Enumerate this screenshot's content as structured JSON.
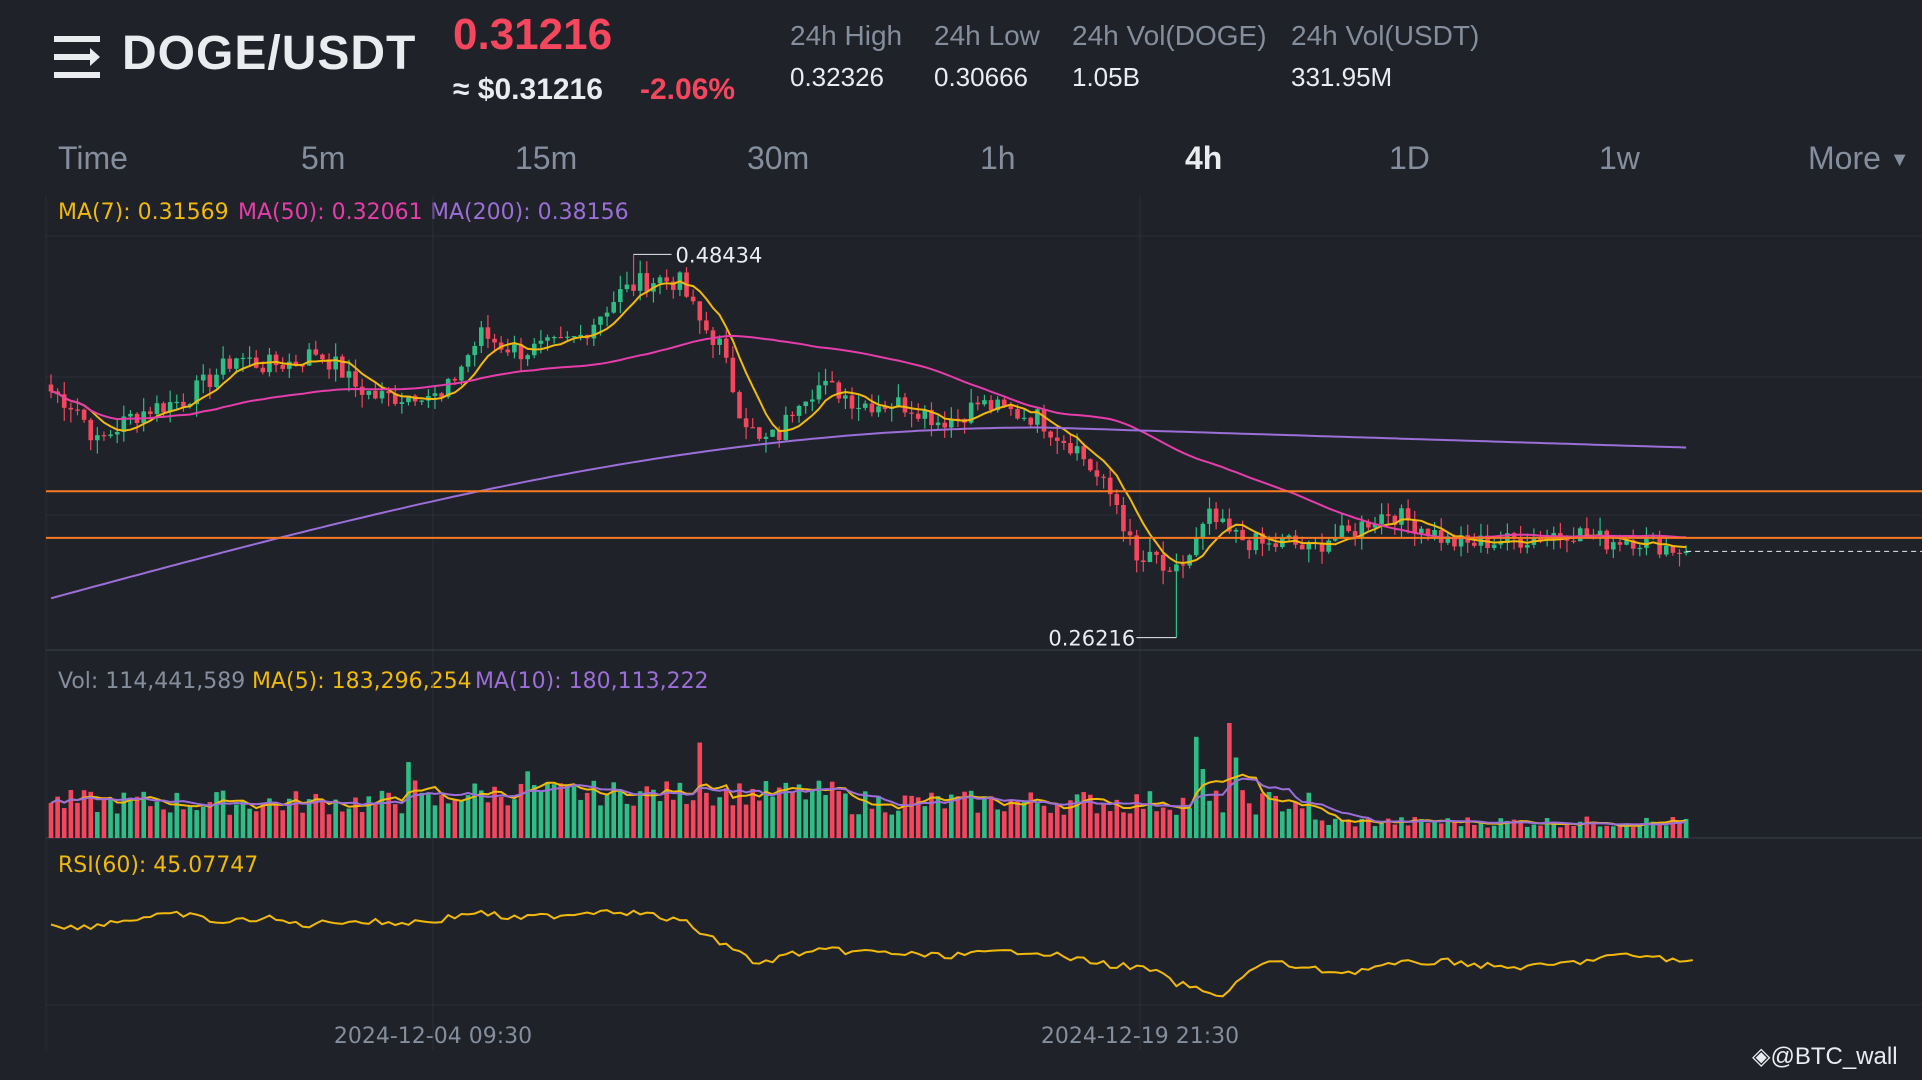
{
  "header": {
    "pair": "DOGE/USDT",
    "price": "0.31216",
    "approx": "≈ $0.31216",
    "change": "-2.06%",
    "stats": [
      {
        "label": "24h High",
        "value": "0.32326"
      },
      {
        "label": "24h Low",
        "value": "0.30666"
      },
      {
        "label": "24h Vol(DOGE)",
        "value": "1.05B"
      },
      {
        "label": "24h Vol(USDT)",
        "value": "331.95M"
      }
    ]
  },
  "timeframes": [
    {
      "label": "Time",
      "active": false
    },
    {
      "label": "5m",
      "active": false
    },
    {
      "label": "15m",
      "active": false
    },
    {
      "label": "30m",
      "active": false
    },
    {
      "label": "1h",
      "active": false
    },
    {
      "label": "4h",
      "active": true
    },
    {
      "label": "1D",
      "active": false
    },
    {
      "label": "1w",
      "active": false
    },
    {
      "label": "More",
      "active": false
    }
  ],
  "indicators": {
    "ma7": "MA(7): 0.31569",
    "ma50": "MA(50): 0.32061",
    "ma200": "MA(200): 0.38156",
    "vol": "Vol: 114,441,589",
    "vol_ma5": "MA(5): 183,296,254",
    "vol_ma10": "MA(10): 180,113,222",
    "rsi": "RSI(60): 45.07747"
  },
  "watermark": "@BTC_wall",
  "colors": {
    "up": "#2ebd85",
    "down": "#f6465d",
    "ma7": "#f0b90b",
    "ma50": "#e53eaa",
    "ma200": "#9c6ed8",
    "hline": "#f77a23",
    "rsi": "#f0b90b"
  },
  "chart_data": {
    "type": "candlestick",
    "x_labels": [
      "2024-12-04 09:30",
      "2024-12-19 21:30"
    ],
    "y_range": [
      0.255,
      0.495
    ],
    "high_marker": {
      "label": "0.48434",
      "value": 0.48434
    },
    "low_marker": {
      "label": "0.26216",
      "value": 0.26216
    },
    "horizontal_lines": [
      0.347,
      0.32
    ],
    "current_price": 0.31216,
    "ma200_start": 0.285,
    "ma200_end": 0.384,
    "price_anchors": [
      [
        0,
        0.405
      ],
      [
        4,
        0.395
      ],
      [
        7,
        0.375
      ],
      [
        12,
        0.39
      ],
      [
        15,
        0.395
      ],
      [
        20,
        0.4
      ],
      [
        24,
        0.412
      ],
      [
        28,
        0.425
      ],
      [
        32,
        0.42
      ],
      [
        37,
        0.422
      ],
      [
        40,
        0.428
      ],
      [
        43,
        0.42
      ],
      [
        46,
        0.408
      ],
      [
        49,
        0.402
      ],
      [
        53,
        0.402
      ],
      [
        56,
        0.405
      ],
      [
        59,
        0.4
      ],
      [
        62,
        0.42
      ],
      [
        65,
        0.438
      ],
      [
        68,
        0.432
      ],
      [
        71,
        0.428
      ],
      [
        74,
        0.43
      ],
      [
        77,
        0.432
      ],
      [
        80,
        0.437
      ],
      [
        83,
        0.45
      ],
      [
        86,
        0.462
      ],
      [
        89,
        0.468
      ],
      [
        92,
        0.47
      ],
      [
        95,
        0.468
      ],
      [
        98,
        0.445
      ],
      [
        101,
        0.432
      ],
      [
        104,
        0.395
      ],
      [
        107,
        0.375
      ],
      [
        110,
        0.38
      ],
      [
        113,
        0.402
      ],
      [
        116,
        0.408
      ],
      [
        119,
        0.405
      ],
      [
        122,
        0.398
      ],
      [
        125,
        0.398
      ],
      [
        128,
        0.398
      ],
      [
        131,
        0.395
      ],
      [
        134,
        0.388
      ],
      [
        137,
        0.39
      ],
      [
        140,
        0.398
      ],
      [
        143,
        0.395
      ],
      [
        146,
        0.392
      ],
      [
        149,
        0.39
      ],
      [
        152,
        0.38
      ],
      [
        155,
        0.372
      ],
      [
        158,
        0.355
      ],
      [
        161,
        0.34
      ],
      [
        164,
        0.305
      ],
      [
        167,
        0.308
      ],
      [
        169,
        0.295
      ],
      [
        172,
        0.31
      ],
      [
        175,
        0.332
      ],
      [
        178,
        0.322
      ],
      [
        181,
        0.318
      ],
      [
        184,
        0.315
      ],
      [
        187,
        0.318
      ],
      [
        190,
        0.312
      ],
      [
        193,
        0.32
      ],
      [
        196,
        0.322
      ],
      [
        199,
        0.33
      ],
      [
        202,
        0.335
      ],
      [
        205,
        0.33
      ],
      [
        208,
        0.325
      ],
      [
        211,
        0.318
      ],
      [
        214,
        0.316
      ],
      [
        217,
        0.318
      ],
      [
        220,
        0.318
      ],
      [
        223,
        0.32
      ],
      [
        226,
        0.322
      ],
      [
        229,
        0.324
      ],
      [
        232,
        0.322
      ],
      [
        235,
        0.318
      ],
      [
        238,
        0.32
      ],
      [
        241,
        0.318
      ],
      [
        244,
        0.315
      ],
      [
        247,
        0.312
      ]
    ],
    "volume_spikes": [
      [
        54,
        0.66
      ],
      [
        98,
        0.83
      ],
      [
        173,
        0.88
      ],
      [
        174,
        0.6
      ],
      [
        178,
        1.0
      ],
      [
        179,
        0.7
      ],
      [
        55,
        0.5
      ],
      [
        72,
        0.58
      ]
    ],
    "rsi_anchors": [
      [
        0,
        0.3
      ],
      [
        4,
        0.35
      ],
      [
        8,
        0.3
      ],
      [
        14,
        0.25
      ],
      [
        20,
        0.22
      ],
      [
        26,
        0.3
      ],
      [
        32,
        0.25
      ],
      [
        38,
        0.32
      ],
      [
        44,
        0.28
      ],
      [
        52,
        0.3
      ],
      [
        58,
        0.28
      ],
      [
        64,
        0.2
      ],
      [
        70,
        0.26
      ],
      [
        78,
        0.22
      ],
      [
        84,
        0.18
      ],
      [
        90,
        0.22
      ],
      [
        96,
        0.3
      ],
      [
        100,
        0.45
      ],
      [
        104,
        0.55
      ],
      [
        106,
        0.68
      ],
      [
        108,
        0.65
      ],
      [
        112,
        0.58
      ],
      [
        118,
        0.55
      ],
      [
        126,
        0.57
      ],
      [
        134,
        0.6
      ],
      [
        140,
        0.58
      ],
      [
        148,
        0.55
      ],
      [
        154,
        0.62
      ],
      [
        160,
        0.68
      ],
      [
        166,
        0.72
      ],
      [
        170,
        0.85
      ],
      [
        172,
        0.88
      ],
      [
        174,
        0.92
      ],
      [
        176,
        0.98
      ],
      [
        178,
        0.9
      ],
      [
        180,
        0.78
      ],
      [
        184,
        0.65
      ],
      [
        190,
        0.72
      ],
      [
        196,
        0.75
      ],
      [
        200,
        0.7
      ],
      [
        206,
        0.66
      ],
      [
        212,
        0.65
      ],
      [
        218,
        0.7
      ],
      [
        224,
        0.7
      ],
      [
        230,
        0.66
      ],
      [
        236,
        0.6
      ],
      [
        242,
        0.6
      ],
      [
        246,
        0.66
      ],
      [
        248,
        0.64
      ]
    ]
  }
}
